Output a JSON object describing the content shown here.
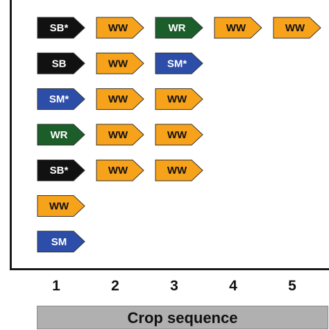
{
  "colors": {
    "SB": "#111111",
    "SB*": "#111111",
    "WW": "#f7a21b",
    "WR": "#1c5e2a",
    "SM": "#2d4ea8",
    "SM*": "#2d4ea8"
  },
  "text_colors": {
    "SB": "#ffffff",
    "SB*": "#ffffff",
    "WW": "#111111",
    "WR": "#ffffff",
    "SM": "#ffffff",
    "SM*": "#ffffff"
  },
  "sequences": [
    [
      "SB*",
      "WW",
      "WR",
      "WW",
      "WW"
    ],
    [
      "SB",
      "WW",
      "SM*"
    ],
    [
      "SM*",
      "WW",
      "WW"
    ],
    [
      "WR",
      "WW",
      "WW"
    ],
    [
      "SB*",
      "WW",
      "WW"
    ],
    [
      "WW"
    ],
    [
      "SM"
    ]
  ],
  "x_ticks": [
    "1",
    "2",
    "3",
    "4",
    "5"
  ],
  "x_axis_title": "Crop sequence"
}
